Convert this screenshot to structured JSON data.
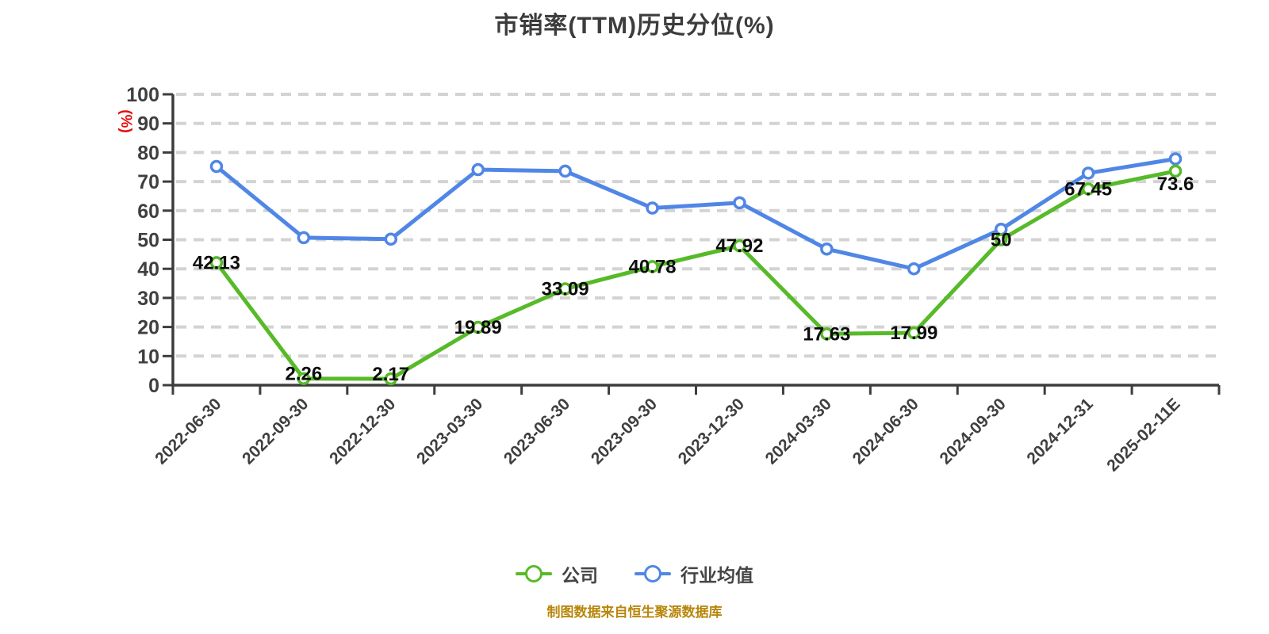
{
  "chart_data": {
    "type": "line",
    "title": "市销率(TTM)历史分位(%)",
    "xlabel": "",
    "ylabel": "(%)",
    "ylim": [
      0,
      100
    ],
    "ytick_step": 10,
    "grid": "horizontal-dashed",
    "legend_position": "bottom-center",
    "categories": [
      "2022-06-30",
      "2022-09-30",
      "2022-12-30",
      "2023-03-30",
      "2023-06-30",
      "2023-09-30",
      "2023-12-30",
      "2024-03-30",
      "2024-06-30",
      "2024-09-30",
      "2024-12-31",
      "2025-02-11E"
    ],
    "series": [
      {
        "name": "公司",
        "color": "#57ba29",
        "values": [
          42.13,
          2.26,
          2.17,
          19.89,
          33.09,
          40.78,
          47.92,
          17.63,
          17.99,
          50,
          67.45,
          73.6
        ],
        "labels_visible": true,
        "point_labels": [
          "42.13",
          "2.26",
          "2.17",
          "19.89",
          "33.09",
          "40.78",
          "47.92",
          "17.63",
          "17.99",
          "50",
          "67.45",
          "73.6"
        ]
      },
      {
        "name": "行业均值",
        "color": "#5086e6",
        "values": [
          75.2,
          50.7,
          50.2,
          74.1,
          73.6,
          60.9,
          62.7,
          46.8,
          40,
          53.6,
          72.9,
          77.8
        ],
        "labels_visible": false,
        "point_labels": []
      }
    ]
  },
  "footer": {
    "note": "制图数据来自恒生聚源数据库"
  },
  "colors": {
    "title": "#3c3c3c",
    "axis": "#3d3d3d",
    "tick_label": "#3f3f3f",
    "data_label": "#0d0d0d",
    "gridline": "#d3d3d3",
    "y_axis_title": "#e60c0c",
    "legend_text": "#454545",
    "footer_text": "#b8860b",
    "point_fill": "#ffffff",
    "background": "#ffffff"
  }
}
